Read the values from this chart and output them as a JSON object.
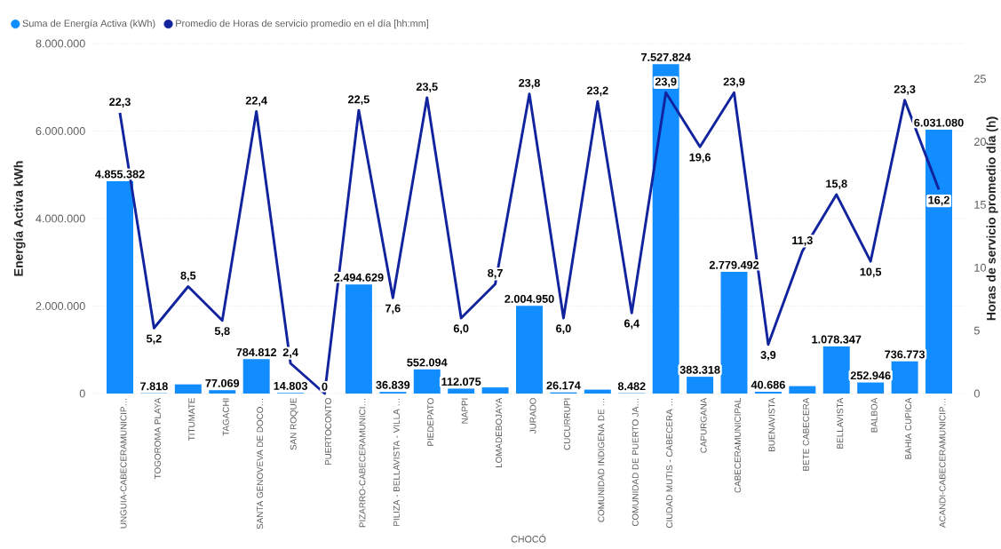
{
  "chart_data": {
    "type": "bar",
    "xlabel": "CHOCÓ",
    "ylabel": "Energía Activa kWh",
    "y2label": "Horas de servicio promedio día (h)",
    "categories": [
      "UNGUIA-CABECERAMUNICIP…",
      "TOGOROMA PLAYA",
      "TITUMATE",
      "TAGACHI",
      "SANTA GENOVEVA DE DOCO…",
      "SAN ROQUE",
      "PUERTOCONTO",
      "PIZARRO-CABECERAMUNICI…",
      "PILIZA - BELLAVISTA - VILLA …",
      "PIEDEPATO",
      "NAPPI",
      "LOMADEBOJAYA",
      "JURADO",
      "CUCURRUPI",
      "COMUNIDAD INDIGENA DE …",
      "COMUNIDAD DE PUERTO JA…",
      "CIUDAD MUTIS - CABECERA …",
      "CAPURGANA",
      "CABECERAMUNICIPAL",
      "BUENAVISTA",
      "BETE CABECERA",
      "BELLAVISTA",
      "BALBOA",
      "BAHIA CUPICA",
      "ACANDI-CABECERAMUNICIP…"
    ],
    "series": [
      {
        "name": "Suma de Energía Activa (kWh)",
        "color": "#118dff",
        "values": [
          4855382,
          7818,
          210000,
          77069,
          784812,
          14803,
          0,
          2494629,
          36839,
          552094,
          112075,
          140000,
          2004950,
          26174,
          90000,
          8482,
          7527824,
          383318,
          2779492,
          40686,
          170000,
          1078347,
          252946,
          736773,
          6031080
        ],
        "value_labels": [
          "4.855.382",
          "7.818",
          null,
          "77.069",
          "784.812",
          "14.803",
          "0",
          "2.494.629",
          "36.839",
          "552.094",
          "112.075",
          null,
          "2.004.950",
          "26.174",
          null,
          "8.482",
          "7.527.824",
          "383.318",
          "2.779.492",
          "40.686",
          null,
          "1.078.347",
          "252.946",
          "736.773",
          "6.031.080"
        ]
      },
      {
        "name": "Promedio de Horas de servicio promedio en el día [hh:mm]",
        "type": "line",
        "axis": "y2",
        "color": "#12239e",
        "values": [
          22.3,
          5.2,
          8.5,
          5.8,
          22.4,
          2.4,
          0,
          22.5,
          7.6,
          23.5,
          6.0,
          8.7,
          23.8,
          6.0,
          23.2,
          6.4,
          23.9,
          19.6,
          23.9,
          3.9,
          11.3,
          15.8,
          10.5,
          23.3,
          16.2
        ],
        "value_labels": [
          "22,3",
          "5,2",
          "8,5",
          "5,8",
          "22,4",
          "2,4",
          null,
          "22,5",
          "7,6",
          "23,5",
          "6,0",
          "8,7",
          "23,8",
          "6,0",
          "23,2",
          "6,4",
          "23,9",
          "19,6",
          "23,9",
          "3,9",
          "11,3",
          "15,8",
          "10,5",
          "23,3",
          "16,2"
        ]
      }
    ],
    "ylim": [
      0,
      8000000
    ],
    "yticks": [
      0,
      {
        "value": 2000000,
        "label": "2.000.000"
      },
      {
        "value": 4000000,
        "label": "4.000.000"
      },
      {
        "value": 6000000,
        "label": "6.000.000"
      },
      {
        "value": 8000000,
        "label": "8.000.000"
      }
    ],
    "y2lim": [
      0,
      27.8
    ],
    "y2ticks": [
      0,
      5,
      10,
      15,
      20,
      25
    ],
    "grid": "y",
    "legend": "top left"
  }
}
